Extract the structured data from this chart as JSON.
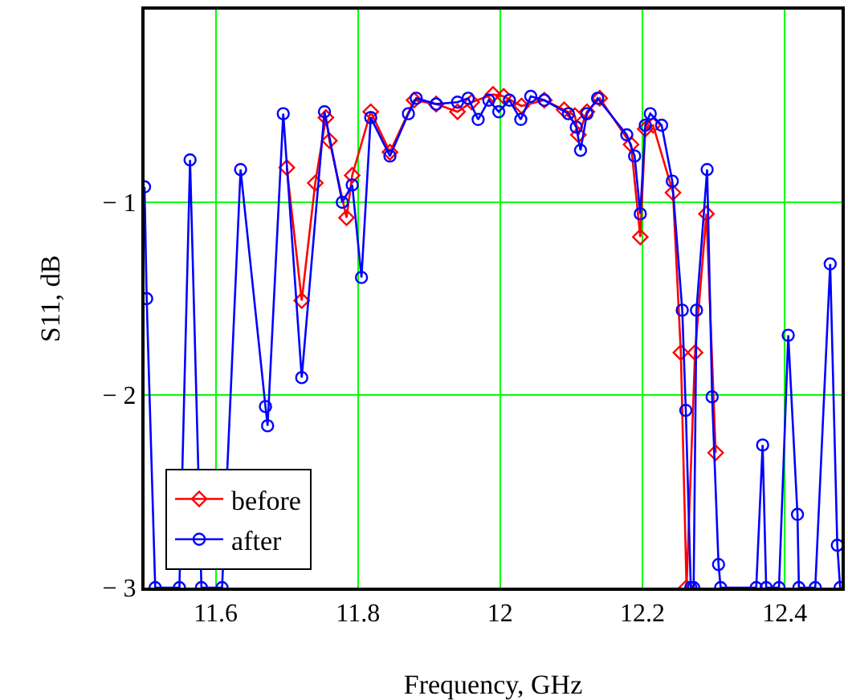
{
  "chart_data": {
    "type": "line",
    "xlabel": "Frequency, GHz",
    "ylabel": "S11, dB",
    "xlim": [
      11.5,
      12.48
    ],
    "xticks": [
      11.6,
      11.8,
      12,
      12.2,
      12.4
    ],
    "ylim": [
      -3,
      0
    ],
    "yticks": [
      {
        "value": -3,
        "label": "− 3"
      },
      {
        "value": -2,
        "label": "− 2"
      },
      {
        "value": -1,
        "label": "− 1"
      }
    ],
    "grid": true,
    "legend": "bottom left",
    "line_style": "solid",
    "series": [
      {
        "name": "before",
        "color": "#ff0000",
        "marker": "diamond",
        "x": [
          11.7,
          11.721,
          11.74,
          11.755,
          11.76,
          11.784,
          11.792,
          11.818,
          11.845,
          11.879,
          11.91,
          11.94,
          11.96,
          11.99,
          12.005,
          12.03,
          12.062,
          12.09,
          12.105,
          12.11,
          12.122,
          12.14,
          12.184,
          12.197,
          12.204,
          12.215,
          12.243,
          12.254,
          12.262,
          12.274,
          12.29,
          12.303
        ],
        "values": [
          -0.82,
          -1.51,
          -0.9,
          -0.56,
          -0.68,
          -1.08,
          -0.86,
          -0.53,
          -0.74,
          -0.47,
          -0.49,
          -0.53,
          -0.48,
          -0.44,
          -0.45,
          -0.5,
          -0.47,
          -0.52,
          -0.55,
          -0.65,
          -0.53,
          -0.46,
          -0.7,
          -1.18,
          -0.62,
          -0.6,
          -0.95,
          -1.78,
          -3,
          -1.78,
          -1.06,
          -2.3
        ]
      },
      {
        "name": "after",
        "color": "#0000ff",
        "marker": "circle",
        "x": [
          11.5,
          11.503,
          11.515,
          11.549,
          11.564,
          11.58,
          11.609,
          11.635,
          11.67,
          11.673,
          11.695,
          11.721,
          11.753,
          11.778,
          11.792,
          11.805,
          11.818,
          11.845,
          11.871,
          11.882,
          11.91,
          11.94,
          11.955,
          11.969,
          11.984,
          11.998,
          12.013,
          12.029,
          12.043,
          12.062,
          12.096,
          12.107,
          12.113,
          12.122,
          12.137,
          12.178,
          12.189,
          12.197,
          12.204,
          12.211,
          12.227,
          12.242,
          12.256,
          12.261,
          12.268,
          12.272,
          12.276,
          12.291,
          12.298,
          12.307,
          12.31,
          12.36,
          12.369,
          12.374,
          12.392,
          12.405,
          12.418,
          12.42,
          12.443,
          12.464,
          12.474,
          12.478
        ],
        "values": [
          -0.92,
          -1.5,
          -3,
          -3,
          -0.78,
          -3,
          -3,
          -0.83,
          -2.06,
          -2.16,
          -0.54,
          -1.91,
          -0.53,
          -1.0,
          -0.91,
          -1.39,
          -0.56,
          -0.76,
          -0.54,
          -0.46,
          -0.49,
          -0.48,
          -0.46,
          -0.57,
          -0.47,
          -0.53,
          -0.47,
          -0.57,
          -0.45,
          -0.47,
          -0.54,
          -0.61,
          -0.73,
          -0.54,
          -0.46,
          -0.65,
          -0.76,
          -1.06,
          -0.6,
          -0.54,
          -0.6,
          -0.89,
          -1.56,
          -2.08,
          -3,
          -3,
          -1.56,
          -0.83,
          -2.01,
          -2.88,
          -3,
          -3,
          -2.26,
          -3,
          -3,
          -1.69,
          -2.62,
          -3,
          -3,
          -1.32,
          -2.78,
          -3
        ]
      }
    ]
  }
}
